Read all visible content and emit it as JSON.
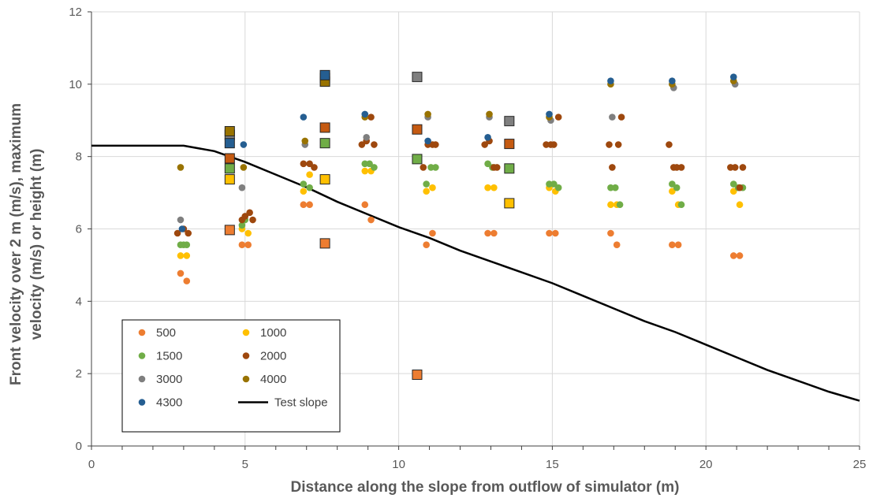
{
  "chart_data": {
    "type": "scatter",
    "xlabel": "Distance along the slope from outflow of simulator (m)",
    "ylabel_lines": [
      "Front velocity over 2 m (m/s), maximum",
      "velocity (m/s) or height (m)"
    ],
    "xlim": [
      0,
      25
    ],
    "ylim": [
      0,
      12
    ],
    "x_ticks": [
      "0",
      "5",
      "10",
      "15",
      "20",
      "25"
    ],
    "y_ticks": [
      "0",
      "2",
      "4",
      "6",
      "8",
      "10",
      "12"
    ],
    "grid": "vertical and horizontal major gridlines",
    "legend_placement": "lower-left",
    "series": [
      {
        "name": "500",
        "color": "#ED7D31",
        "marker": "circle",
        "points": [
          [
            2.9,
            4.77
          ],
          [
            3.1,
            4.56
          ],
          [
            4.9,
            5.56
          ],
          [
            5.1,
            5.56
          ],
          [
            6.9,
            6.67
          ],
          [
            7.1,
            6.67
          ],
          [
            8.9,
            6.67
          ],
          [
            9.1,
            6.25
          ],
          [
            10.9,
            5.56
          ],
          [
            11.1,
            5.88
          ],
          [
            12.9,
            5.88
          ],
          [
            13.1,
            5.88
          ],
          [
            14.9,
            5.88
          ],
          [
            15.1,
            5.88
          ],
          [
            16.9,
            5.88
          ],
          [
            17.1,
            5.56
          ],
          [
            18.9,
            5.56
          ],
          [
            19.1,
            5.56
          ],
          [
            20.9,
            5.26
          ],
          [
            21.1,
            5.26
          ]
        ]
      },
      {
        "name": "1000",
        "color": "#FFC000",
        "marker": "circle",
        "points": [
          [
            2.9,
            5.26
          ],
          [
            3.1,
            5.26
          ],
          [
            4.9,
            6.0
          ],
          [
            5.1,
            5.88
          ],
          [
            6.9,
            7.04
          ],
          [
            7.1,
            7.5
          ],
          [
            8.9,
            7.6
          ],
          [
            9.1,
            7.6
          ],
          [
            10.9,
            7.04
          ],
          [
            11.1,
            7.14
          ],
          [
            12.9,
            7.14
          ],
          [
            13.1,
            7.14
          ],
          [
            14.9,
            7.14
          ],
          [
            15.1,
            7.04
          ],
          [
            16.9,
            6.67
          ],
          [
            17.1,
            6.67
          ],
          [
            18.9,
            7.04
          ],
          [
            19.1,
            6.67
          ],
          [
            20.9,
            7.04
          ],
          [
            21.1,
            6.67
          ]
        ]
      },
      {
        "name": "1500",
        "color": "#70AD47",
        "marker": "circle",
        "points": [
          [
            2.9,
            5.56
          ],
          [
            3.0,
            5.56
          ],
          [
            3.1,
            5.56
          ],
          [
            4.9,
            6.1
          ],
          [
            5.0,
            6.25
          ],
          [
            6.9,
            7.24
          ],
          [
            7.1,
            7.14
          ],
          [
            8.9,
            7.8
          ],
          [
            9.05,
            7.8
          ],
          [
            9.2,
            7.7
          ],
          [
            10.9,
            7.24
          ],
          [
            11.05,
            7.7
          ],
          [
            11.2,
            7.7
          ],
          [
            12.9,
            7.8
          ],
          [
            13.05,
            7.7
          ],
          [
            14.9,
            7.24
          ],
          [
            15.05,
            7.24
          ],
          [
            15.2,
            7.14
          ],
          [
            16.9,
            7.14
          ],
          [
            17.05,
            7.14
          ],
          [
            17.2,
            6.67
          ],
          [
            18.9,
            7.24
          ],
          [
            19.05,
            7.14
          ],
          [
            19.2,
            6.67
          ],
          [
            20.9,
            7.24
          ],
          [
            21.05,
            7.14
          ],
          [
            21.2,
            7.14
          ]
        ]
      },
      {
        "name": "2000",
        "color": "#9E480E",
        "marker": "circle",
        "points": [
          [
            2.8,
            5.88
          ],
          [
            3.0,
            6.0
          ],
          [
            3.15,
            5.88
          ],
          [
            4.9,
            6.25
          ],
          [
            5.0,
            6.35
          ],
          [
            5.15,
            6.45
          ],
          [
            5.25,
            6.25
          ],
          [
            6.9,
            7.8
          ],
          [
            7.1,
            7.8
          ],
          [
            7.25,
            7.7
          ],
          [
            8.8,
            8.33
          ],
          [
            8.95,
            8.43
          ],
          [
            9.1,
            9.09
          ],
          [
            9.2,
            8.33
          ],
          [
            10.8,
            7.7
          ],
          [
            10.95,
            8.33
          ],
          [
            11.1,
            8.33
          ],
          [
            11.2,
            8.33
          ],
          [
            12.8,
            8.33
          ],
          [
            12.95,
            8.43
          ],
          [
            13.1,
            7.7
          ],
          [
            13.2,
            7.7
          ],
          [
            14.8,
            8.33
          ],
          [
            14.95,
            8.33
          ],
          [
            15.05,
            8.33
          ],
          [
            15.2,
            9.09
          ],
          [
            16.85,
            8.33
          ],
          [
            16.95,
            7.7
          ],
          [
            17.15,
            8.33
          ],
          [
            17.25,
            9.09
          ],
          [
            18.8,
            8.33
          ],
          [
            18.95,
            7.7
          ],
          [
            19.05,
            7.7
          ],
          [
            19.2,
            7.7
          ],
          [
            20.8,
            7.7
          ],
          [
            20.95,
            7.7
          ],
          [
            21.1,
            7.14
          ],
          [
            21.2,
            7.7
          ]
        ]
      },
      {
        "name": "3000",
        "color": "#7F7F7F",
        "marker": "circle",
        "points": [
          [
            2.9,
            6.25
          ],
          [
            4.9,
            7.14
          ],
          [
            6.95,
            8.33
          ],
          [
            8.95,
            8.53
          ],
          [
            10.95,
            9.09
          ],
          [
            12.95,
            9.09
          ],
          [
            14.95,
            9.0
          ],
          [
            16.95,
            9.09
          ],
          [
            18.95,
            9.9
          ],
          [
            20.95,
            10.0
          ]
        ]
      },
      {
        "name": "4000",
        "color": "#997300",
        "marker": "circle",
        "points": [
          [
            2.9,
            7.7
          ],
          [
            4.95,
            7.7
          ],
          [
            6.95,
            8.43
          ],
          [
            8.9,
            9.09
          ],
          [
            10.95,
            9.17
          ],
          [
            12.95,
            9.17
          ],
          [
            14.9,
            9.09
          ],
          [
            16.9,
            10.0
          ],
          [
            18.9,
            10.0
          ],
          [
            20.9,
            10.09
          ]
        ]
      },
      {
        "name": "4300",
        "color": "#255E91",
        "marker": "circle",
        "points": [
          [
            2.95,
            6.0
          ],
          [
            4.95,
            8.33
          ],
          [
            6.9,
            9.09
          ],
          [
            8.9,
            9.17
          ],
          [
            10.95,
            8.43
          ],
          [
            12.9,
            8.53
          ],
          [
            14.9,
            9.17
          ],
          [
            16.9,
            10.09
          ],
          [
            18.9,
            10.09
          ],
          [
            20.9,
            10.2
          ]
        ]
      }
    ],
    "square_series": [
      {
        "color": "#ED7D31",
        "points": [
          [
            4.5,
            5.97
          ],
          [
            7.6,
            5.6
          ],
          [
            10.6,
            1.97
          ]
        ]
      },
      {
        "color": "#FFC000",
        "points": [
          [
            4.5,
            7.37
          ],
          [
            7.6,
            7.37
          ],
          [
            13.6,
            6.71
          ]
        ]
      },
      {
        "color": "#70AD47",
        "points": [
          [
            4.5,
            7.67
          ],
          [
            7.6,
            8.37
          ],
          [
            10.6,
            7.93
          ],
          [
            13.6,
            7.67
          ]
        ]
      },
      {
        "color": "#C55A11",
        "points": [
          [
            4.5,
            7.95
          ],
          [
            7.6,
            8.8
          ],
          [
            10.6,
            8.75
          ],
          [
            13.6,
            8.35
          ]
        ]
      },
      {
        "color": "#7F7F7F",
        "points": [
          [
            4.5,
            8.6
          ],
          [
            7.6,
            10.17
          ],
          [
            10.6,
            10.2
          ],
          [
            13.6,
            8.98
          ]
        ]
      },
      {
        "color": "#997300",
        "points": [
          [
            4.5,
            8.7
          ],
          [
            7.6,
            10.07
          ]
        ]
      },
      {
        "color": "#255E91",
        "points": [
          [
            4.5,
            8.37
          ],
          [
            7.6,
            10.25
          ]
        ]
      }
    ],
    "line_series": {
      "name": "Test slope",
      "color": "#000000",
      "points": [
        [
          0,
          8.3
        ],
        [
          3,
          8.3
        ],
        [
          4,
          8.15
        ],
        [
          5,
          7.85
        ],
        [
          6,
          7.5
        ],
        [
          7,
          7.15
        ],
        [
          8,
          6.75
        ],
        [
          9,
          6.4
        ],
        [
          10,
          6.05
        ],
        [
          11,
          5.75
        ],
        [
          12,
          5.4
        ],
        [
          13,
          5.1
        ],
        [
          14,
          4.8
        ],
        [
          15,
          4.5
        ],
        [
          16,
          4.15
        ],
        [
          17,
          3.8
        ],
        [
          18,
          3.45
        ],
        [
          19,
          3.15
        ],
        [
          20,
          2.8
        ],
        [
          21,
          2.45
        ],
        [
          22,
          2.1
        ],
        [
          23,
          1.8
        ],
        [
          24,
          1.5
        ],
        [
          25,
          1.25
        ]
      ]
    },
    "legend": [
      {
        "label": "500",
        "color": "#ED7D31",
        "kind": "marker"
      },
      {
        "label": "1000",
        "color": "#FFC000",
        "kind": "marker"
      },
      {
        "label": "1500",
        "color": "#70AD47",
        "kind": "marker"
      },
      {
        "label": "2000",
        "color": "#9E480E",
        "kind": "marker"
      },
      {
        "label": "3000",
        "color": "#7F7F7F",
        "kind": "marker"
      },
      {
        "label": "4000",
        "color": "#997300",
        "kind": "marker"
      },
      {
        "label": "4300",
        "color": "#255E91",
        "kind": "marker"
      },
      {
        "label": "Test slope",
        "color": "#000000",
        "kind": "line"
      }
    ]
  }
}
